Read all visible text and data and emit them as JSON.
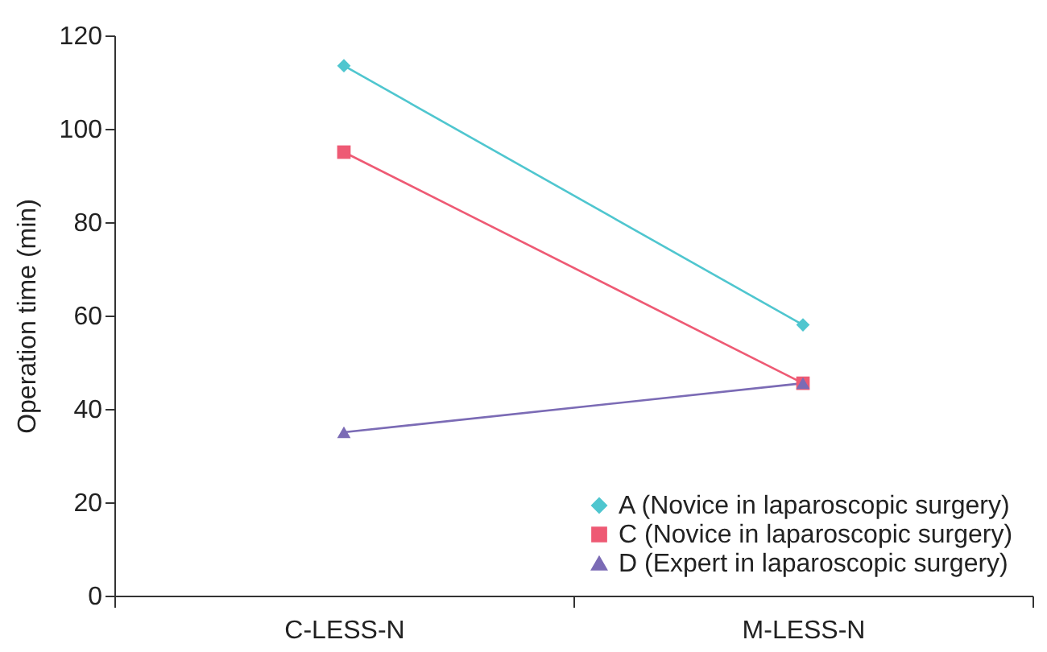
{
  "chart_data": {
    "type": "line",
    "ylabel": "Operation time (min)",
    "categories": [
      "C-LESS-N",
      "M-LESS-N"
    ],
    "series": [
      {
        "name": "A (Novice in laparoscopic surgery)",
        "color": "#4fc6cf",
        "marker": "diamond",
        "values": [
          113.5,
          58
        ]
      },
      {
        "name": "C (Novice in laparoscopic surgery)",
        "color": "#ee5a74",
        "marker": "square",
        "values": [
          95,
          45.5
        ]
      },
      {
        "name": "D (Expert in laparoscopic surgery)",
        "color": "#7b6bb5",
        "marker": "triangle",
        "values": [
          35,
          45.5
        ]
      }
    ],
    "ylim": [
      0,
      120
    ],
    "yticks": [
      0,
      20,
      40,
      60,
      80,
      100,
      120
    ],
    "grid": false,
    "legend": "bottom right"
  }
}
